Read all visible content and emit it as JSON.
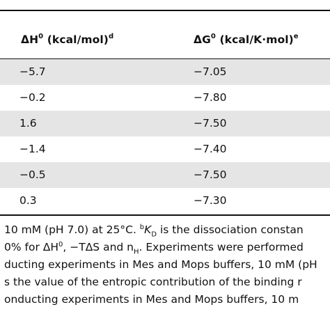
{
  "table": {
    "header": {
      "dh_symbol": "ΔH",
      "dh_superscript": "0",
      "dh_unit": " (kcal/mol)",
      "dh_note": "d",
      "dg_symbol": "ΔG",
      "dg_superscript": "0",
      "dg_unit": " (kcal/K·mol)",
      "dg_note": "e"
    },
    "rows": [
      {
        "dh": "−5.7",
        "dg": "−7.05"
      },
      {
        "dh": "−0.2",
        "dg": "−7.80"
      },
      {
        "dh": "1.6",
        "dg": "−7.50"
      },
      {
        "dh": "−1.4",
        "dg": "−7.40"
      },
      {
        "dh": "−0.5",
        "dg": "−7.50"
      },
      {
        "dh": "0.3",
        "dg": "−7.30"
      }
    ]
  },
  "footnotes": {
    "line1_a": "10 mM (pH 7.0) at 25°C. ",
    "line1_b_mark": "b",
    "line1_k": "K",
    "line1_k_sub": "D",
    "line1_c": " is the dissociation constan",
    "line2_a": "0% for ΔH",
    "line2_sup": "0",
    "line2_b": ", −TΔS and n",
    "line2_sub": "H",
    "line2_c": ". Experiments were performed",
    "line3": "ducting experiments in Mes and Mops buffers, 10 mM (pH",
    "line4": "s the value of the entropic contribution of the binding r",
    "line5": "onducting experiments in Mes and Mops buffers, 10 m"
  }
}
